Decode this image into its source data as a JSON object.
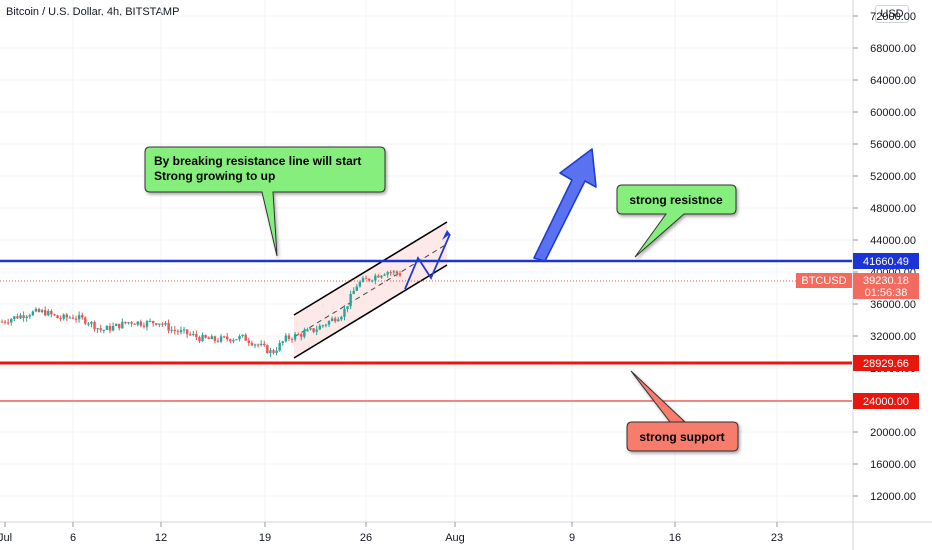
{
  "header": {
    "title": "Bitcoin / U.S. Dollar, 4h, BITSTAMP",
    "currency_button": "USD"
  },
  "colors": {
    "resistance": "#1c33d6",
    "support": "#e8160c",
    "arrow": "#5b72f0",
    "green_note": "#86ee7c",
    "red_note": "#f77b6c",
    "up": "#26a69a",
    "down": "#ef5350"
  },
  "annotations": {
    "breakout_note": [
      "By breaking resistance line will start",
      "Strong growing to up"
    ],
    "resistance_note": "strong resistnce",
    "support_note": "strong support"
  },
  "price_labels": {
    "resistance": "41660.49",
    "support": "28929.66",
    "level_24000": "24000.00",
    "symbol": "BTCUSD",
    "last_price": "39230.18",
    "countdown": "01:56:38"
  },
  "chart_data": {
    "type": "candlestick",
    "symbol": "BTCUSD",
    "exchange": "BITSTAMP",
    "interval": "4h",
    "x_ticks": [
      "Jul",
      "6",
      "12",
      "19",
      "26",
      "Aug",
      "9",
      "16",
      "23"
    ],
    "y_ticks": [
      "12000.00",
      "16000.00",
      "20000.00",
      "24000.00",
      "28000.00",
      "32000.00",
      "36000.00",
      "40000.00",
      "44000.00",
      "48000.00",
      "52000.00",
      "56000.00",
      "60000.00",
      "64000.00",
      "68000.00",
      "72000.00"
    ],
    "ylim": [
      8000,
      74000
    ],
    "horizontal_levels": [
      {
        "value": 41660.49,
        "role": "resistance"
      },
      {
        "value": 28929.66,
        "role": "support"
      },
      {
        "value": 24000.0,
        "role": "level"
      }
    ],
    "last_price": 39230.18,
    "price_path": [
      [
        "Jul 1",
        33800
      ],
      [
        "Jul 2",
        34400
      ],
      [
        "Jul 3",
        34900
      ],
      [
        "Jul 4",
        35000
      ],
      [
        "Jul 5",
        34200
      ],
      [
        "Jul 6",
        34400
      ],
      [
        "Jul 7",
        33900
      ],
      [
        "Jul 8",
        32700
      ],
      [
        "Jul 9",
        33200
      ],
      [
        "Jul 10",
        33800
      ],
      [
        "Jul 11",
        33600
      ],
      [
        "Jul 12",
        33800
      ],
      [
        "Jul 13",
        32700
      ],
      [
        "Jul 14",
        32300
      ],
      [
        "Jul 15",
        31700
      ],
      [
        "Jul 16",
        31500
      ],
      [
        "Jul 17",
        31700
      ],
      [
        "Jul 18",
        31800
      ],
      [
        "Jul 19",
        30900
      ],
      [
        "Jul 20",
        29900
      ],
      [
        "Jul 21",
        31700
      ],
      [
        "Jul 22",
        32200
      ],
      [
        "Jul 23",
        32800
      ],
      [
        "Jul 24",
        33800
      ],
      [
        "Jul 25",
        34900
      ],
      [
        "Jul 26",
        38500
      ],
      [
        "Jul 27",
        39300
      ],
      [
        "Jul 28",
        40100
      ],
      [
        "Jul 29",
        39800
      ]
    ]
  }
}
